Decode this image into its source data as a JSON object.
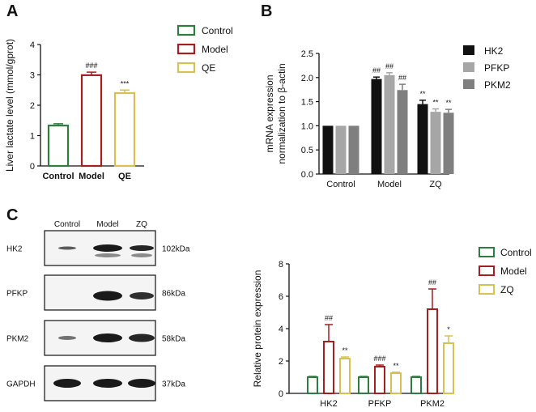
{
  "panels": {
    "a": "A",
    "b": "B",
    "c": "C"
  },
  "colors": {
    "control": "#2e7d3e",
    "model": "#a31f22",
    "qe": "#d8c053",
    "hk2": "#111111",
    "pfkp": "#a6a6a6",
    "pkm2": "#7f7f7f"
  },
  "chart_data": [
    {
      "id": "A",
      "type": "bar",
      "ylabel": "Liver lactate level (mmol/gprot)",
      "ylim": [
        0,
        4
      ],
      "yticks": [
        "0",
        "1",
        "2",
        "3",
        "4"
      ],
      "categories": [
        "Control",
        "Model",
        "QE"
      ],
      "values": [
        1.33,
        2.99,
        2.4
      ],
      "errors": [
        0.06,
        0.1,
        0.1
      ],
      "annotations": [
        "",
        "###",
        "***"
      ],
      "legend": [
        "Control",
        "Model",
        "QE"
      ],
      "legend_position": "right",
      "style": "open-bars"
    },
    {
      "id": "B",
      "type": "bar",
      "ylabel": "mRNA expression\nnormalization to β-actin",
      "ylim": [
        0,
        2.5
      ],
      "yticks": [
        "0.0",
        "0.5",
        "1.0",
        "1.5",
        "2.0",
        "2.5"
      ],
      "categories": [
        "Control",
        "Model",
        "ZQ"
      ],
      "series": [
        {
          "name": "HK2",
          "values": [
            1.0,
            1.97,
            1.45
          ],
          "errors": [
            0,
            0.04,
            0.08
          ],
          "annotations": [
            "",
            "##",
            "**"
          ]
        },
        {
          "name": "PFKP",
          "values": [
            1.0,
            2.05,
            1.29
          ],
          "errors": [
            0,
            0.05,
            0.06
          ],
          "annotations": [
            "",
            "##",
            "**"
          ]
        },
        {
          "name": "PKM2",
          "values": [
            1.0,
            1.74,
            1.27
          ],
          "errors": [
            0,
            0.12,
            0.07
          ],
          "annotations": [
            "",
            "##",
            "**"
          ]
        }
      ],
      "legend_position": "right",
      "style": "filled-bars"
    },
    {
      "id": "C",
      "type": "bar",
      "ylabel": "Relative protein expression",
      "ylim": [
        0,
        8
      ],
      "yticks": [
        "0",
        "2",
        "4",
        "6",
        "8"
      ],
      "categories": [
        "HK2",
        "PFKP",
        "PKM2"
      ],
      "series": [
        {
          "name": "Control",
          "values": [
            1.0,
            1.0,
            1.0
          ],
          "errors": [
            0.05,
            0.05,
            0.05
          ],
          "annotations": [
            "",
            "",
            ""
          ]
        },
        {
          "name": "Model",
          "values": [
            3.2,
            1.65,
            5.2
          ],
          "errors": [
            1.05,
            0.1,
            1.25
          ],
          "annotations": [
            "##",
            "###",
            "##"
          ]
        },
        {
          "name": "ZQ",
          "values": [
            2.15,
            1.25,
            3.1
          ],
          "errors": [
            0.1,
            0.06,
            0.45
          ],
          "annotations": [
            "**",
            "**",
            "*"
          ]
        }
      ],
      "legend_position": "top-right",
      "style": "open-bars"
    }
  ],
  "blot": {
    "lanes": [
      "Control",
      "Model",
      "ZQ"
    ],
    "rows": [
      {
        "protein": "HK2",
        "size": "102kDa"
      },
      {
        "protein": "PFKP",
        "size": "86kDa"
      },
      {
        "protein": "PKM2",
        "size": "58kDa"
      },
      {
        "protein": "GAPDH",
        "size": "37kDa"
      }
    ]
  }
}
